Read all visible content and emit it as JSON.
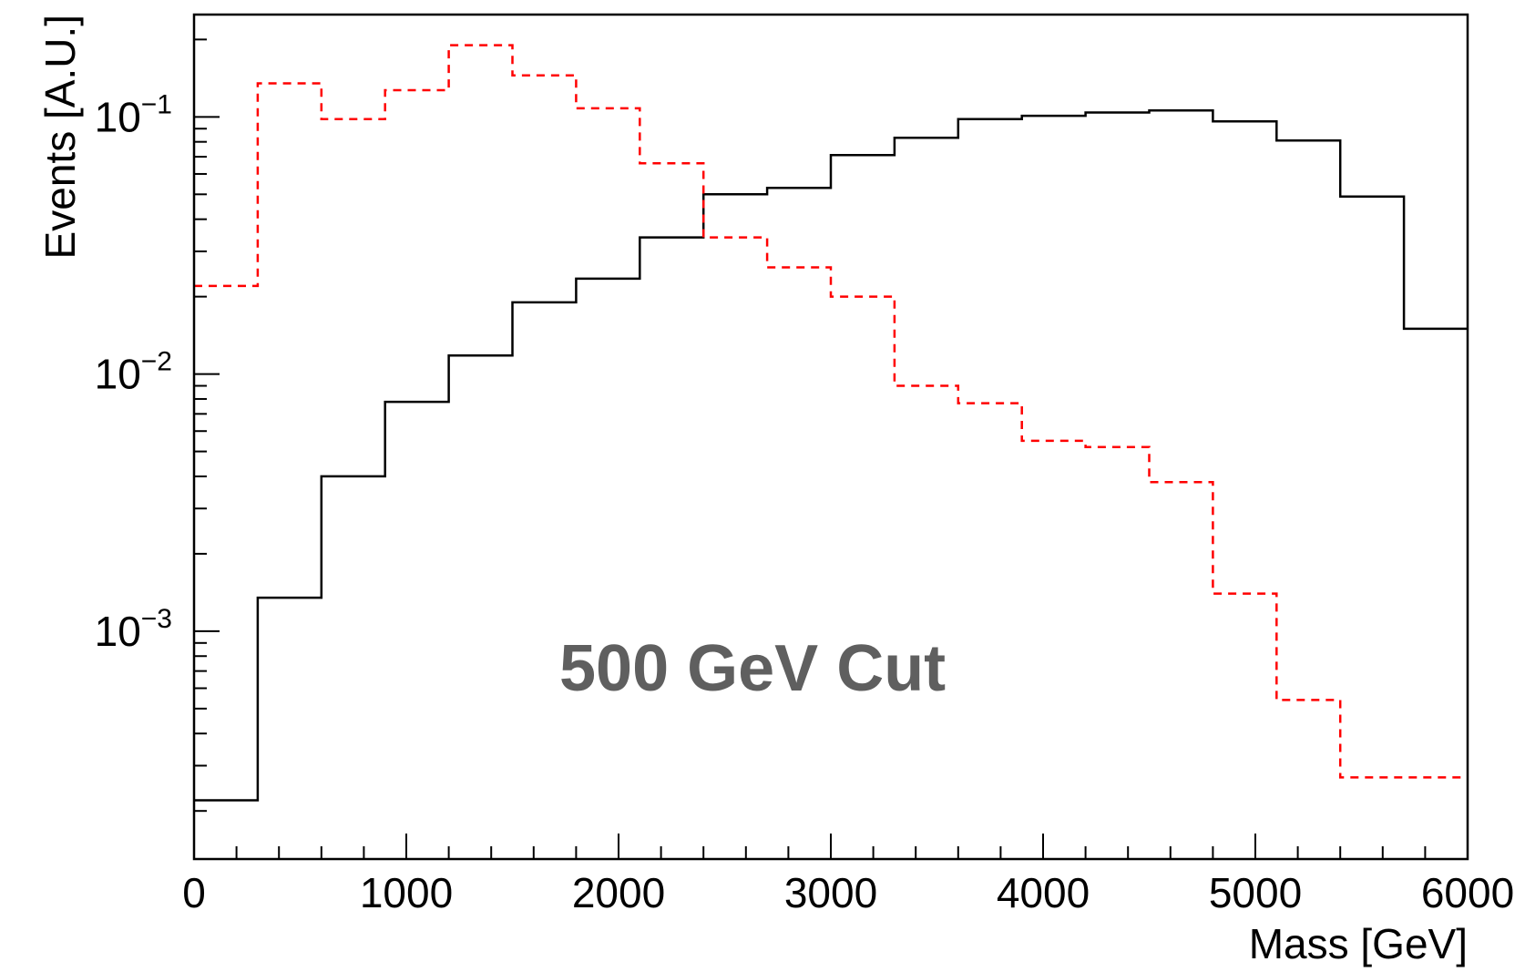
{
  "chart_data": {
    "type": "histogram",
    "title": "",
    "xlabel": "Mass [GeV]",
    "ylabel": "Events [A.U.]",
    "xlim": [
      0,
      6000
    ],
    "ylim": [
      0.00013,
      0.25
    ],
    "y_scale": "log",
    "grid": false,
    "legend": "none",
    "annotation": "500 GeV Cut",
    "annotation_color": "#5f5f5f",
    "x_ticks": [
      0,
      1000,
      2000,
      3000,
      4000,
      5000,
      6000
    ],
    "x_tick_labels": [
      "0",
      "1000",
      "2000",
      "3000",
      "4000",
      "5000",
      "6000"
    ],
    "y_ticks": [
      0.001,
      0.01,
      0.1
    ],
    "y_tick_labels": [
      {
        "base": "10",
        "exponent": "−3"
      },
      {
        "base": "10",
        "exponent": "−2"
      },
      {
        "base": "10",
        "exponent": "−1"
      }
    ],
    "bin_edges": [
      0,
      300,
      600,
      900,
      1200,
      1500,
      1800,
      2100,
      2400,
      2700,
      3000,
      3300,
      3600,
      3900,
      4200,
      4500,
      4800,
      5100,
      5400,
      5700,
      6000
    ],
    "series": [
      {
        "color": "#000000",
        "line_style": "solid",
        "values": [
          0.00022,
          0.00135,
          0.004,
          0.0078,
          0.0118,
          0.019,
          0.0235,
          0.034,
          0.05,
          0.053,
          0.071,
          0.083,
          0.098,
          0.101,
          0.104,
          0.106,
          0.096,
          0.081,
          0.049,
          0.015
        ]
      },
      {
        "color": "#ff0000",
        "line_style": "dashed",
        "values": [
          0.022,
          0.135,
          0.098,
          0.127,
          0.19,
          0.145,
          0.108,
          0.066,
          0.034,
          0.026,
          0.02,
          0.009,
          0.0077,
          0.0055,
          0.0052,
          0.0038,
          0.0014,
          0.00054,
          0.00027,
          0.00027
        ]
      }
    ]
  }
}
